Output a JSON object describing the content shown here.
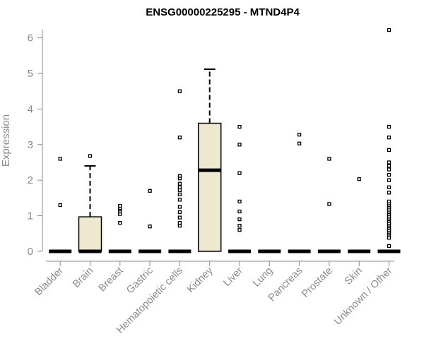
{
  "chart_data": {
    "type": "boxplot",
    "title": "ENSG00000225295 - MTND4P4",
    "xlabel": "",
    "ylabel": "Expression",
    "ylim": [
      0,
      6.3
    ],
    "yticks": [
      0,
      1,
      2,
      3,
      4,
      5,
      6
    ],
    "grid": false,
    "legend": "none",
    "box_fill": "#efe8d0",
    "categories": [
      "Bladder",
      "Brain",
      "Breast",
      "Gastric",
      "Hematopoietic cells",
      "Kidney",
      "Liver",
      "Lung",
      "Pancreas",
      "Prostate",
      "Skin",
      "Unknown / Other"
    ],
    "boxes": [
      {
        "q1": 0,
        "median": 0,
        "q3": 0,
        "whisker_low": 0,
        "whisker_high": 0,
        "outliers": [
          1.3,
          2.6
        ]
      },
      {
        "q1": 0,
        "median": 0,
        "q3": 0.97,
        "whisker_low": 0,
        "whisker_high": 2.4,
        "outliers": [
          2.68
        ]
      },
      {
        "q1": 0,
        "median": 0,
        "q3": 0,
        "whisker_low": 0,
        "whisker_high": 0,
        "outliers": [
          0.8,
          1.05,
          1.12,
          1.18,
          1.22,
          1.28
        ]
      },
      {
        "q1": 0,
        "median": 0,
        "q3": 0,
        "whisker_low": 0,
        "whisker_high": 0,
        "outliers": [
          0.7,
          1.7
        ]
      },
      {
        "q1": 0,
        "median": 0,
        "q3": 0,
        "whisker_low": 0,
        "whisker_high": 0,
        "outliers": [
          0.72,
          0.8,
          0.95,
          1.1,
          1.25,
          1.45,
          1.6,
          1.72,
          1.8,
          1.9,
          2.05,
          2.12,
          3.2,
          4.5
        ]
      },
      {
        "q1": 0,
        "median": 2.28,
        "q3": 3.6,
        "whisker_low": 0,
        "whisker_high": 5.12,
        "outliers": []
      },
      {
        "q1": 0,
        "median": 0,
        "q3": 0,
        "whisker_low": 0,
        "whisker_high": 0,
        "outliers": [
          0.6,
          0.72,
          0.9,
          1.12,
          1.4,
          2.2,
          3.0,
          3.5
        ]
      },
      {
        "q1": 0,
        "median": 0,
        "q3": 0,
        "whisker_low": 0,
        "whisker_high": 0,
        "outliers": []
      },
      {
        "q1": 0,
        "median": 0,
        "q3": 0,
        "whisker_low": 0,
        "whisker_high": 0,
        "outliers": [
          3.03,
          3.28
        ]
      },
      {
        "q1": 0,
        "median": 0,
        "q3": 0,
        "whisker_low": 0,
        "whisker_high": 0,
        "outliers": [
          1.33,
          2.6
        ]
      },
      {
        "q1": 0,
        "median": 0,
        "q3": 0,
        "whisker_low": 0,
        "whisker_high": 0,
        "outliers": [
          2.03
        ]
      },
      {
        "q1": 0,
        "median": 0,
        "q3": 0,
        "whisker_low": 0,
        "whisker_high": 0,
        "outliers": [
          0.15,
          0.38,
          0.45,
          0.5,
          0.55,
          0.6,
          0.65,
          0.7,
          0.75,
          0.8,
          0.85,
          0.9,
          0.95,
          1.0,
          1.05,
          1.1,
          1.15,
          1.2,
          1.25,
          1.3,
          1.35,
          1.4,
          1.65,
          1.8,
          2.0,
          2.15,
          2.3,
          2.4,
          2.5,
          2.85,
          3.2,
          3.5,
          6.22
        ]
      }
    ]
  }
}
